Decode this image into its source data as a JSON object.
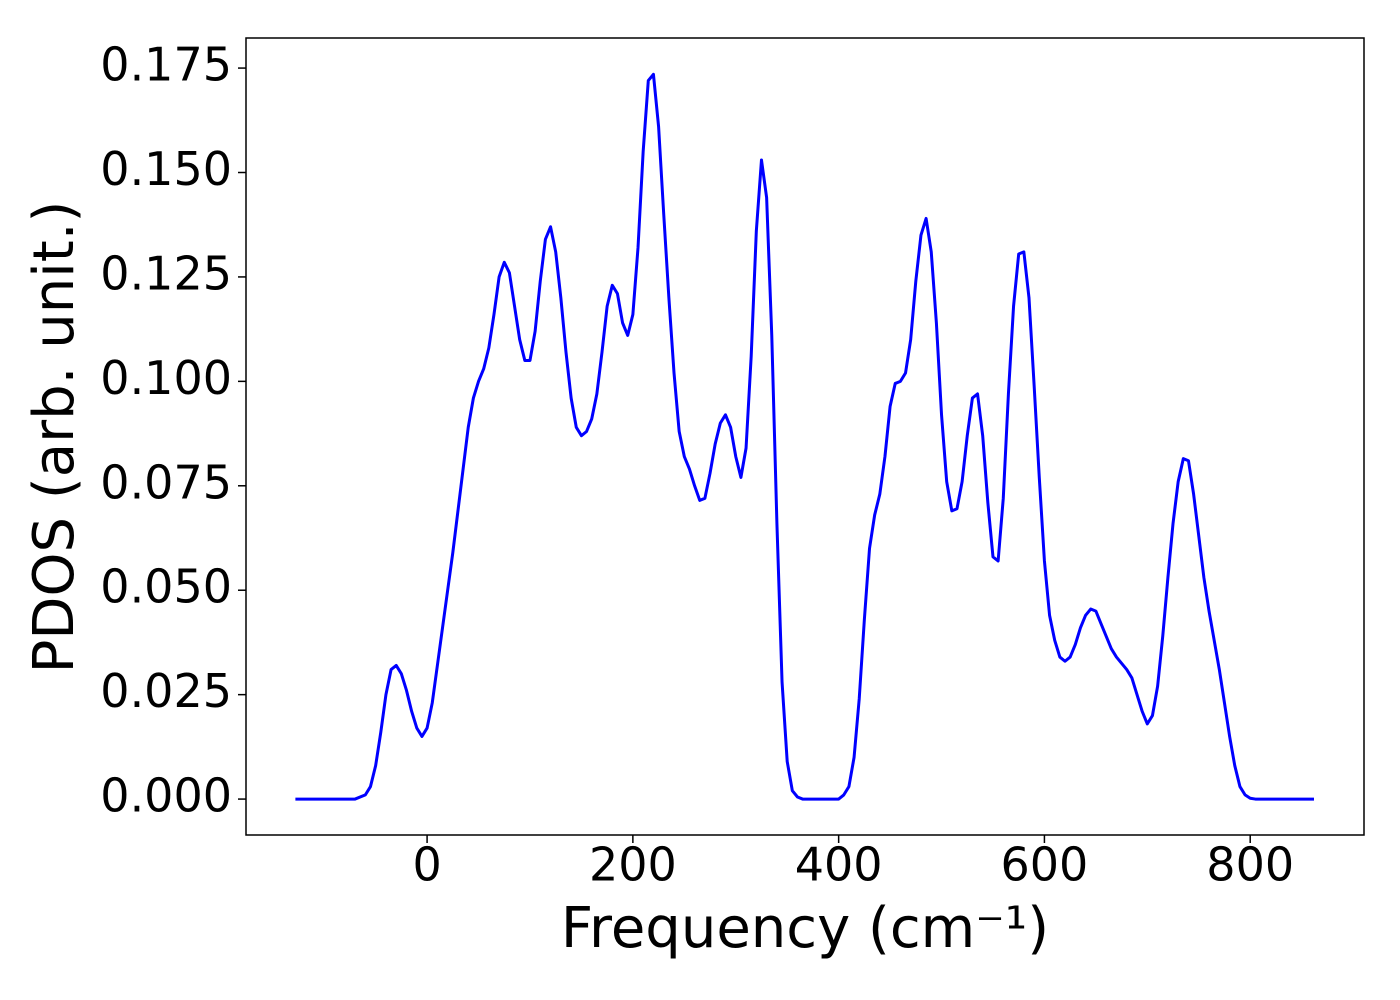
{
  "chart_data": {
    "type": "line",
    "xlabel": "Frequency (cm⁻¹)",
    "ylabel": "PDOS (arb. unit.)",
    "color": "#0000ff",
    "xlim": [
      -176,
      910.6
    ],
    "ylim": [
      -0.0086,
      0.1822
    ],
    "xticks": [
      0,
      200,
      400,
      600,
      800
    ],
    "yticks": [
      {
        "value": 0,
        "label": "0.000"
      },
      0.025,
      {
        "value": 0.05,
        "label": "0.050"
      },
      0.075,
      {
        "value": 0.1,
        "label": "0.100"
      },
      0.125,
      {
        "value": 0.15,
        "label": "0.150"
      },
      0.175
    ],
    "x": [
      -128,
      -70,
      -60,
      -55,
      -50,
      -45,
      -40,
      -35,
      -30,
      -25,
      -20,
      -15,
      -10,
      -5,
      0,
      5,
      10,
      15,
      20,
      25,
      30,
      35,
      40,
      45,
      50,
      55,
      60,
      65,
      70,
      75,
      80,
      85,
      90,
      95,
      100,
      105,
      110,
      115,
      120,
      125,
      130,
      135,
      140,
      145,
      150,
      155,
      160,
      165,
      170,
      175,
      180,
      185,
      190,
      195,
      200,
      205,
      210,
      215,
      220,
      225,
      230,
      235,
      240,
      245,
      250,
      255,
      260,
      265,
      270,
      275,
      280,
      285,
      290,
      295,
      300,
      305,
      310,
      315,
      320,
      325,
      330,
      335,
      340,
      345,
      350,
      355,
      360,
      365,
      400,
      405,
      410,
      415,
      420,
      425,
      430,
      435,
      440,
      445,
      450,
      455,
      460,
      465,
      470,
      475,
      480,
      485,
      490,
      495,
      500,
      505,
      510,
      515,
      520,
      525,
      530,
      535,
      540,
      545,
      550,
      555,
      560,
      565,
      570,
      575,
      580,
      585,
      590,
      595,
      600,
      605,
      610,
      615,
      620,
      625,
      630,
      635,
      640,
      645,
      650,
      655,
      660,
      665,
      670,
      675,
      680,
      685,
      690,
      695,
      700,
      705,
      710,
      715,
      720,
      725,
      730,
      735,
      740,
      745,
      750,
      755,
      760,
      765,
      770,
      775,
      780,
      785,
      790,
      795,
      800,
      805,
      862
    ],
    "values": [
      0,
      0,
      0.001,
      0.003,
      0.008,
      0.016,
      0.025,
      0.031,
      0.032,
      0.03,
      0.026,
      0.021,
      0.017,
      0.015,
      0.017,
      0.023,
      0.032,
      0.041,
      0.05,
      0.059,
      0.069,
      0.079,
      0.089,
      0.096,
      0.1,
      0.103,
      0.108,
      0.116,
      0.125,
      0.1285,
      0.126,
      0.118,
      0.11,
      0.105,
      0.105,
      0.112,
      0.124,
      0.134,
      0.137,
      0.131,
      0.12,
      0.107,
      0.096,
      0.089,
      0.087,
      0.088,
      0.091,
      0.097,
      0.107,
      0.118,
      0.123,
      0.121,
      0.114,
      0.111,
      0.116,
      0.132,
      0.155,
      0.172,
      0.1735,
      0.161,
      0.14,
      0.12,
      0.102,
      0.088,
      0.082,
      0.079,
      0.075,
      0.0715,
      0.072,
      0.078,
      0.085,
      0.09,
      0.092,
      0.089,
      0.082,
      0.077,
      0.084,
      0.106,
      0.136,
      0.153,
      0.144,
      0.111,
      0.066,
      0.028,
      0.009,
      0.002,
      0.0005,
      0,
      0,
      0.001,
      0.003,
      0.01,
      0.024,
      0.043,
      0.06,
      0.068,
      0.073,
      0.082,
      0.094,
      0.0995,
      0.1,
      0.102,
      0.11,
      0.124,
      0.135,
      0.139,
      0.131,
      0.114,
      0.092,
      0.076,
      0.069,
      0.0695,
      0.076,
      0.087,
      0.096,
      0.097,
      0.087,
      0.071,
      0.058,
      0.057,
      0.072,
      0.097,
      0.118,
      0.1305,
      0.131,
      0.12,
      0.099,
      0.077,
      0.057,
      0.044,
      0.038,
      0.034,
      0.033,
      0.034,
      0.037,
      0.041,
      0.044,
      0.0455,
      0.045,
      0.042,
      0.039,
      0.036,
      0.034,
      0.0325,
      0.031,
      0.029,
      0.025,
      0.021,
      0.018,
      0.02,
      0.027,
      0.039,
      0.053,
      0.066,
      0.076,
      0.0815,
      0.081,
      0.073,
      0.063,
      0.053,
      0.045,
      0.038,
      0.031,
      0.023,
      0.015,
      0.008,
      0.003,
      0.001,
      0.0002,
      0,
      0
    ]
  }
}
